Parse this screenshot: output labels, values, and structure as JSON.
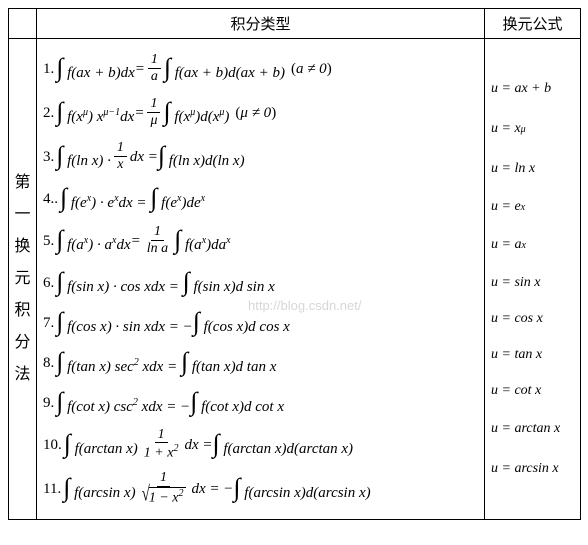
{
  "headers": {
    "method": "",
    "type": "积分类型",
    "sub": "换元公式"
  },
  "method_label_chars": [
    "第",
    "一",
    "换",
    "元",
    "积",
    "分",
    "法"
  ],
  "watermark_text": "http://blog.csdn.net/",
  "rows": [
    {
      "num": "1.",
      "lhs": "∫ f(ax + b)dx",
      "eq": " = ",
      "frac": {
        "n": "1",
        "d": "a"
      },
      "rhs": "∫ f(ax + b)d(ax + b)",
      "cond": "(a ≠ 0)",
      "sub": "u = ax + b"
    },
    {
      "num": "2.",
      "lhs_html": "∫ f(x<sup class='sup'>μ</sup>) x<sup class='sup'>μ−1</sup>dx",
      "eq": " = ",
      "frac": {
        "n": "1",
        "d": "μ"
      },
      "rhs_html": "∫ f(x<sup class='sup'>μ</sup>)d(x<sup class='sup'>μ</sup>)",
      "cond": "(μ ≠ 0)",
      "sub_html": "u = x<sup class='sup'>μ</sup>"
    },
    {
      "num": "3.",
      "lhs": "∫ f(ln x) · ",
      "frac": {
        "n": "1",
        "d": "x"
      },
      "mid": " dx = ",
      "rhs": "∫ f(ln x)d(ln x)",
      "sub": "u = ln x"
    },
    {
      "num": "4..",
      "lhs_html": "∫ f(e<sup class='sup'>x</sup>) · e<sup class='sup'>x</sup>dx = ∫ f(e<sup class='sup'>x</sup>)de<sup class='sup'>x</sup>",
      "sub_html": "u = e<sup class='sup'>x</sup>"
    },
    {
      "num": "5.",
      "lhs_html": "∫ f(a<sup class='sup'>x</sup>) · a<sup class='sup'>x</sup>dx",
      "eq": " = ",
      "frac": {
        "n": "1",
        "d": "ln a"
      },
      "rhs_html": "∫ f(a<sup class='sup'>x</sup>)da<sup class='sup'>x</sup>",
      "sub_html": "u = a<sup class='sup'>x</sup>"
    },
    {
      "num": "6.",
      "lhs": "∫ f(sin x) · cos xdx = ∫ f(sin x)d sin x",
      "sub": "u = sin x"
    },
    {
      "num": "7.",
      "lhs": "∫ f(cos x) · sin xdx = −∫ f(cos x)d cos x",
      "sub": "u = cos x"
    },
    {
      "num": "8.",
      "lhs_html": "∫ f(tan x) sec<sup class='sup'>2</sup> xdx = ∫ f(tan x)d tan x",
      "sub": "u = tan x"
    },
    {
      "num": "9.",
      "lhs_html": "∫ f(cot x) csc<sup class='sup'>2</sup> xdx = −∫ f(cot x)d cot x",
      "sub": "u = cot x"
    },
    {
      "num": "10.",
      "lhs": "∫ f(arctan x) ",
      "frac": {
        "n": "1",
        "d_html": "1 + x<sup class='sup'>2</sup>"
      },
      "mid": " dx = ",
      "rhs": "∫ f(arctan x)d(arctan x)",
      "sub": "u = arctan x"
    },
    {
      "num": "11.",
      "lhs": "∫ f(arcsin x) ",
      "frac": {
        "n": "1",
        "d_sqrt_html": "1 − x<sup class='sup'>2</sup>"
      },
      "mid": " dx = −",
      "rhs": "∫ f(arcsin x)d(arcsin x)",
      "sub": "u = arcsin x"
    }
  ]
}
